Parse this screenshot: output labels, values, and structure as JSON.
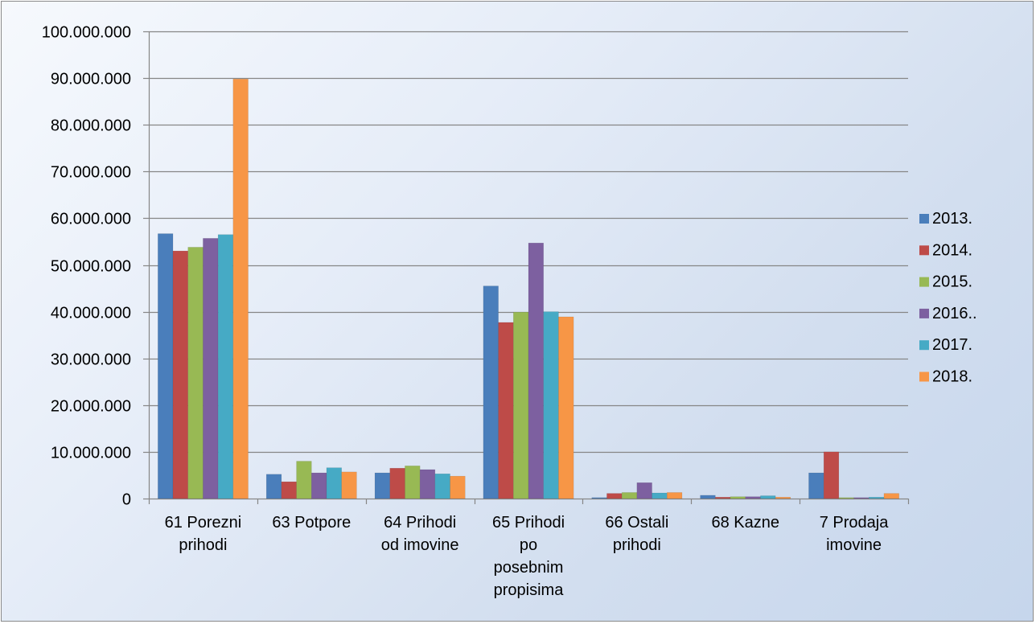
{
  "chart_data": {
    "type": "bar",
    "title": "",
    "xlabel": "",
    "ylabel": "",
    "ylim": [
      0,
      100000000
    ],
    "yticks": [
      0,
      10000000,
      20000000,
      30000000,
      40000000,
      50000000,
      60000000,
      70000000,
      80000000,
      90000000,
      100000000
    ],
    "ytick_labels": [
      "0",
      "10.000.000",
      "20.000.000",
      "30.000.000",
      "40.000.000",
      "50.000.000",
      "60.000.000",
      "70.000.000",
      "80.000.000",
      "90.000.000",
      "100.000.000"
    ],
    "grid": true,
    "legend_position": "right",
    "categories": [
      [
        "61 Porezni",
        "prihodi"
      ],
      [
        "63 Potpore"
      ],
      [
        "64 Prihodi",
        "od imovine"
      ],
      [
        "65 Prihodi",
        "po",
        "posebnim",
        "propisima"
      ],
      [
        "66 Ostali",
        "prihodi"
      ],
      [
        "68 Kazne"
      ],
      [
        "7 Prodaja",
        "imovine"
      ]
    ],
    "series": [
      {
        "name": "2013.",
        "color": "#4a7ebb",
        "values": [
          56700000,
          5200000,
          5500000,
          45500000,
          200000,
          700000,
          5500000
        ]
      },
      {
        "name": "2014.",
        "color": "#be4b48",
        "values": [
          53000000,
          3600000,
          6500000,
          37700000,
          1100000,
          300000,
          10000000
        ]
      },
      {
        "name": "2015.",
        "color": "#98b954",
        "values": [
          53800000,
          8000000,
          7000000,
          39900000,
          1300000,
          400000,
          200000
        ]
      },
      {
        "name": "2016..",
        "color": "#7d60a0",
        "values": [
          55700000,
          5500000,
          6200000,
          54700000,
          3400000,
          400000,
          200000
        ]
      },
      {
        "name": "2017.",
        "color": "#46aac5",
        "values": [
          56500000,
          6600000,
          5300000,
          40000000,
          1200000,
          600000,
          300000
        ]
      },
      {
        "name": "2018.",
        "color": "#f79646",
        "values": [
          89800000,
          5700000,
          4800000,
          38900000,
          1300000,
          300000,
          1100000
        ]
      }
    ]
  }
}
